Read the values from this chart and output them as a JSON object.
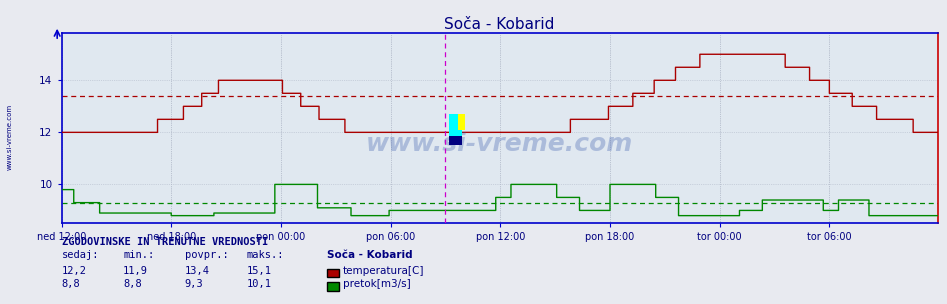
{
  "title": "Soča - Kobarid",
  "title_color": "#000080",
  "bg_color": "#e8eaf0",
  "plot_bg_color": "#e0e8f0",
  "grid_color": "#b0b8c8",
  "xlabel_color": "#000080",
  "ylabel_color": "#000080",
  "x_labels": [
    "ned 12:00",
    "ned 18:00",
    "pon 00:00",
    "pon 06:00",
    "pon 12:00",
    "pon 18:00",
    "tor 00:00",
    "tor 06:00"
  ],
  "y_ticks": [
    10,
    12,
    14
  ],
  "ylim": [
    8.5,
    15.8
  ],
  "xlim": [
    0,
    575
  ],
  "x_tick_positions": [
    0,
    72,
    144,
    216,
    288,
    360,
    432,
    504
  ],
  "watermark": "www.si-vreme.com",
  "watermark_color": "#3355aa",
  "watermark_alpha": 0.3,
  "povpr_temp": 13.4,
  "povpr_flow": 9.3,
  "vline_pos": 252,
  "vline_color": "#cc00cc",
  "sidebar_text": "www.si-vreme.com",
  "sidebar_color": "#000080",
  "legend_title": "Soča - Kobarid",
  "temp_color": "#aa0000",
  "flow_color": "#008800",
  "stats_header": "ZGODOVINSKE IN TRENUTNE VREDNOSTI",
  "stats_cols": [
    "sedaj:",
    "min.:",
    "povpr.:",
    "maks.:"
  ],
  "stats_temp": [
    "12,2",
    "11,9",
    "13,4",
    "15,1"
  ],
  "stats_flow": [
    "8,8",
    "8,8",
    "9,3",
    "10,1"
  ],
  "right_border_color": "#cc0000",
  "axis_color": "#0000cc"
}
